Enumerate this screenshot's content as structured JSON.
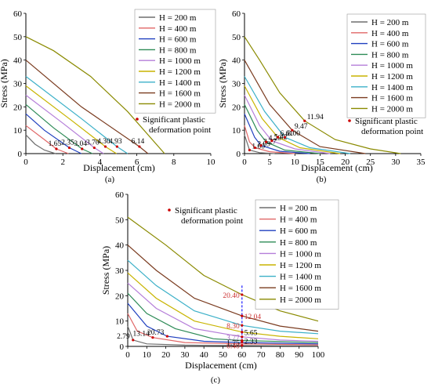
{
  "colors": {
    "series": [
      "#6e6e6e",
      "#e06666",
      "#1f3fbf",
      "#2e8b57",
      "#b57ed9",
      "#c8b400",
      "#3cb0c8",
      "#7a3b1f",
      "#8a8a00"
    ],
    "marker": "#cc0000",
    "red_ann": "#cc3333",
    "black_ann": "#000000",
    "dashed": "#1a1aff"
  },
  "chart_data": [
    {
      "id": "a",
      "type": "line",
      "subcaption": "(a)",
      "xlabel": "Displacement (cm)",
      "ylabel": "Stress (MPa)",
      "xlim": [
        0,
        10
      ],
      "ylim": [
        0,
        60
      ],
      "xticks": [
        0,
        2,
        4,
        6,
        8,
        10
      ],
      "yticks": [
        0,
        10,
        20,
        30,
        40,
        50,
        60
      ],
      "legend": [
        "H = 200 m",
        "H = 400 m",
        "H = 600 m",
        "H = 800 m",
        "H = 1000 m",
        "H = 1200 m",
        "H = 1400 m",
        "H = 1600 m",
        "H = 2000 m"
      ],
      "legend_position": "top-right",
      "marker_label": "Significant plastic deformation point",
      "series": [
        {
          "name": "H = 200 m",
          "points": [
            [
              0,
              8
            ],
            [
              0.5,
              4
            ],
            [
              1.0,
              1.5
            ],
            [
              1.6,
              0
            ]
          ]
        },
        {
          "name": "H = 400 m",
          "points": [
            [
              0,
              12
            ],
            [
              1,
              6
            ],
            [
              1.65,
              2
            ],
            [
              2.3,
              0
            ]
          ]
        },
        {
          "name": "H = 600 m",
          "points": [
            [
              0,
              17
            ],
            [
              1,
              10
            ],
            [
              2.35,
              2.5
            ],
            [
              3.0,
              0
            ]
          ]
        },
        {
          "name": "H = 800 m",
          "points": [
            [
              0,
              21
            ],
            [
              1.5,
              11
            ],
            [
              3.04,
              2
            ],
            [
              3.6,
              0
            ]
          ]
        },
        {
          "name": "H = 1000 m",
          "points": [
            [
              0,
              25
            ],
            [
              2,
              13
            ],
            [
              3.7,
              2.5
            ],
            [
              4.2,
              0
            ]
          ]
        },
        {
          "name": "H = 1200 m",
          "points": [
            [
              0,
              29
            ],
            [
              2.5,
              14
            ],
            [
              4.3,
              3
            ],
            [
              4.9,
              0
            ]
          ]
        },
        {
          "name": "H = 1400 m",
          "points": [
            [
              0,
              33
            ],
            [
              3,
              15
            ],
            [
              4.93,
              3
            ],
            [
              5.5,
              0
            ]
          ]
        },
        {
          "name": "H = 1600 m",
          "points": [
            [
              0,
              40
            ],
            [
              3,
              20
            ],
            [
              6.14,
              3
            ],
            [
              6.6,
              0
            ]
          ]
        },
        {
          "name": "H = 2000 m",
          "points": [
            [
              0,
              50
            ],
            [
              1.5,
              44
            ],
            [
              3.5,
              33
            ],
            [
              5.5,
              18
            ],
            [
              7.5,
              0
            ]
          ]
        }
      ],
      "annotations": [
        {
          "label": "1.65",
          "x": 1.65,
          "y": 2.0,
          "color": "black"
        },
        {
          "label": "2.35",
          "x": 2.35,
          "y": 2.5,
          "color": "black"
        },
        {
          "label": "3.04",
          "x": 3.04,
          "y": 2.0,
          "color": "black"
        },
        {
          "label": "3.70",
          "x": 3.7,
          "y": 2.5,
          "color": "black"
        },
        {
          "label": "4.30",
          "x": 4.3,
          "y": 3.0,
          "color": "black"
        },
        {
          "label": "4.93",
          "x": 4.93,
          "y": 3.0,
          "color": "black"
        },
        {
          "label": "6.14",
          "x": 6.14,
          "y": 3.0,
          "color": "black"
        }
      ]
    },
    {
      "id": "b",
      "type": "line",
      "subcaption": "(b)",
      "xlabel": "Displacement (cm)",
      "ylabel": "Stress (MPa)",
      "xlim": [
        0,
        35
      ],
      "ylim": [
        0,
        60
      ],
      "xticks": [
        0,
        5,
        10,
        15,
        20,
        25,
        30,
        35
      ],
      "yticks": [
        0,
        10,
        20,
        30,
        40,
        50,
        60
      ],
      "legend": [
        "H = 200 m",
        "H = 400 m",
        "H = 600 m",
        "H = 800 m",
        "H = 1000 m",
        "H = 1200 m",
        "H = 1400 m",
        "H = 1600 m",
        "H = 2000 m"
      ],
      "legend_position": "top-right",
      "marker_label": "Significant plastic deformation point",
      "series": [
        {
          "name": "H = 200 m",
          "points": [
            [
              0,
              8
            ],
            [
              1.0,
              1.5
            ],
            [
              3,
              0.4
            ],
            [
              6,
              0
            ]
          ]
        },
        {
          "name": "H = 400 m",
          "points": [
            [
              0,
              12
            ],
            [
              1,
              5
            ],
            [
              2.09,
              2.5
            ],
            [
              5,
              0.8
            ],
            [
              10,
              0
            ]
          ]
        },
        {
          "name": "H = 600 m",
          "points": [
            [
              0,
              17
            ],
            [
              2,
              7
            ],
            [
              3.27,
              3.5
            ],
            [
              7,
              1
            ],
            [
              13,
              0
            ]
          ]
        },
        {
          "name": "H = 800 m",
          "points": [
            [
              0,
              21
            ],
            [
              2.5,
              10
            ],
            [
              4.29,
              5
            ],
            [
              8,
              1.5
            ],
            [
              15,
              0
            ]
          ]
        },
        {
          "name": "H = 1000 m",
          "points": [
            [
              0,
              25
            ],
            [
              3,
              12
            ],
            [
              5.42,
              5.5
            ],
            [
              10,
              2
            ],
            [
              17,
              0
            ]
          ]
        },
        {
          "name": "H = 1200 m",
          "points": [
            [
              0,
              29
            ],
            [
              3.5,
              15
            ],
            [
              6.61,
              7
            ],
            [
              11,
              2.5
            ],
            [
              19,
              0
            ]
          ]
        },
        {
          "name": "H = 1400 m",
          "points": [
            [
              0,
              33
            ],
            [
              4,
              18
            ],
            [
              8.0,
              7
            ],
            [
              13,
              2.5
            ],
            [
              21,
              0
            ]
          ]
        },
        {
          "name": "H = 1600 m",
          "points": [
            [
              0,
              40
            ],
            [
              5,
              21
            ],
            [
              9.47,
              10
            ],
            [
              15,
              3
            ],
            [
              24,
              0
            ]
          ]
        },
        {
          "name": "H = 2000 m",
          "points": [
            [
              0,
              50
            ],
            [
              3,
              40
            ],
            [
              7,
              26
            ],
            [
              11.94,
              14
            ],
            [
              18,
              6
            ],
            [
              25,
              2
            ],
            [
              31,
              0
            ]
          ]
        }
      ],
      "annotations": [
        {
          "label": "1.00",
          "x": 1.0,
          "y": 1.5,
          "color": "black"
        },
        {
          "label": "2.09",
          "x": 2.09,
          "y": 2.5,
          "color": "black"
        },
        {
          "label": "3.27",
          "x": 3.27,
          "y": 3.5,
          "color": "black"
        },
        {
          "label": "4.29",
          "x": 4.29,
          "y": 5.0,
          "color": "black"
        },
        {
          "label": "5.42",
          "x": 5.42,
          "y": 5.5,
          "color": "black"
        },
        {
          "label": "6.61",
          "x": 6.61,
          "y": 7.0,
          "color": "black"
        },
        {
          "label": "8.00",
          "x": 8.0,
          "y": 7.0,
          "color": "black"
        },
        {
          "label": "9.47",
          "x": 9.47,
          "y": 10.0,
          "color": "black"
        },
        {
          "label": "11.94",
          "x": 11.94,
          "y": 14.0,
          "color": "black"
        }
      ]
    },
    {
      "id": "c",
      "type": "line",
      "subcaption": "(c)",
      "xlabel": "Displacement (cm)",
      "ylabel": "Stress (MPa)",
      "xlim": [
        0,
        100
      ],
      "ylim": [
        0,
        60
      ],
      "xticks": [
        0,
        10,
        20,
        30,
        40,
        50,
        60,
        70,
        80,
        90,
        100
      ],
      "yticks": [
        0,
        10,
        20,
        30,
        40,
        50,
        60
      ],
      "legend": [
        "H = 200 m",
        "H = 400 m",
        "H = 600 m",
        "H = 800 m",
        "H = 1000 m",
        "H = 1200 m",
        "H = 1400 m",
        "H = 1600 m",
        "H = 2000 m"
      ],
      "legend_position": "top-right",
      "marker_label": "Significant plastic deformation point",
      "series": [
        {
          "name": "H = 200 m",
          "points": [
            [
              0,
              8
            ],
            [
              2.79,
              2.5
            ],
            [
              10,
              1.0
            ],
            [
              30,
              0.5
            ],
            [
              60,
              0.3
            ],
            [
              100,
              0.2
            ]
          ]
        },
        {
          "name": "H = 400 m",
          "points": [
            [
              0,
              13
            ],
            [
              5,
              6
            ],
            [
              13.14,
              3.5
            ],
            [
              30,
              1.5
            ],
            [
              60,
              1.0
            ],
            [
              100,
              0.6
            ]
          ]
        },
        {
          "name": "H = 600 m",
          "points": [
            [
              0,
              17
            ],
            [
              10,
              8
            ],
            [
              20.73,
              4
            ],
            [
              40,
              2
            ],
            [
              60,
              1.5
            ],
            [
              100,
              1
            ]
          ]
        },
        {
          "name": "H = 800 m",
          "points": [
            [
              0,
              21
            ],
            [
              10,
              13
            ],
            [
              25,
              7
            ],
            [
              45,
              3
            ],
            [
              60,
              2.33
            ],
            [
              100,
              1.5
            ]
          ]
        },
        {
          "name": "H = 1000 m",
          "points": [
            [
              0,
              25
            ],
            [
              15,
              15
            ],
            [
              35,
              7
            ],
            [
              60,
              3.77
            ],
            [
              80,
              2.5
            ],
            [
              100,
              2
            ]
          ]
        },
        {
          "name": "H = 1200 m",
          "points": [
            [
              0,
              29
            ],
            [
              15,
              19
            ],
            [
              35,
              10
            ],
            [
              60,
              5.65
            ],
            [
              80,
              4
            ],
            [
              100,
              3
            ]
          ]
        },
        {
          "name": "H = 1400 m",
          "points": [
            [
              0,
              34
            ],
            [
              15,
              24
            ],
            [
              35,
              14
            ],
            [
              60,
              8.3
            ],
            [
              80,
              6
            ],
            [
              100,
              5
            ]
          ]
        },
        {
          "name": "H = 1600 m",
          "points": [
            [
              0,
              40
            ],
            [
              15,
              30
            ],
            [
              35,
              19
            ],
            [
              60,
              12.04
            ],
            [
              80,
              8
            ],
            [
              100,
              6
            ]
          ]
        },
        {
          "name": "H = 2000 m",
          "points": [
            [
              0,
              51
            ],
            [
              20,
              40
            ],
            [
              40,
              28
            ],
            [
              60,
              20.4
            ],
            [
              80,
              14
            ],
            [
              100,
              10
            ]
          ]
        }
      ],
      "annotations": [
        {
          "label": "2.79",
          "x": 2.79,
          "y": 2.5,
          "color": "black"
        },
        {
          "label": "13.14",
          "x": 13.14,
          "y": 3.5,
          "color": "black"
        },
        {
          "label": "20.73",
          "x": 20.73,
          "y": 4.0,
          "color": "black"
        },
        {
          "label": "20.40",
          "x": 60,
          "y": 20.4,
          "color": "red"
        },
        {
          "label": "12.04",
          "x": 60,
          "y": 12.04,
          "color": "red"
        },
        {
          "label": "8.30",
          "x": 60,
          "y": 8.3,
          "color": "red"
        },
        {
          "label": "5.65",
          "x": 60,
          "y": 5.65,
          "color": "black"
        },
        {
          "label": "3.77",
          "x": 60,
          "y": 3.77,
          "color": "purple"
        },
        {
          "label": "2.33",
          "x": 60,
          "y": 2.33,
          "color": "black"
        },
        {
          "label": "1.75",
          "x": 60,
          "y": 1.75,
          "color": "black"
        },
        {
          "label": "0.40",
          "x": 60,
          "y": 0.4,
          "color": "red"
        }
      ],
      "reference_line_x": 60
    }
  ]
}
